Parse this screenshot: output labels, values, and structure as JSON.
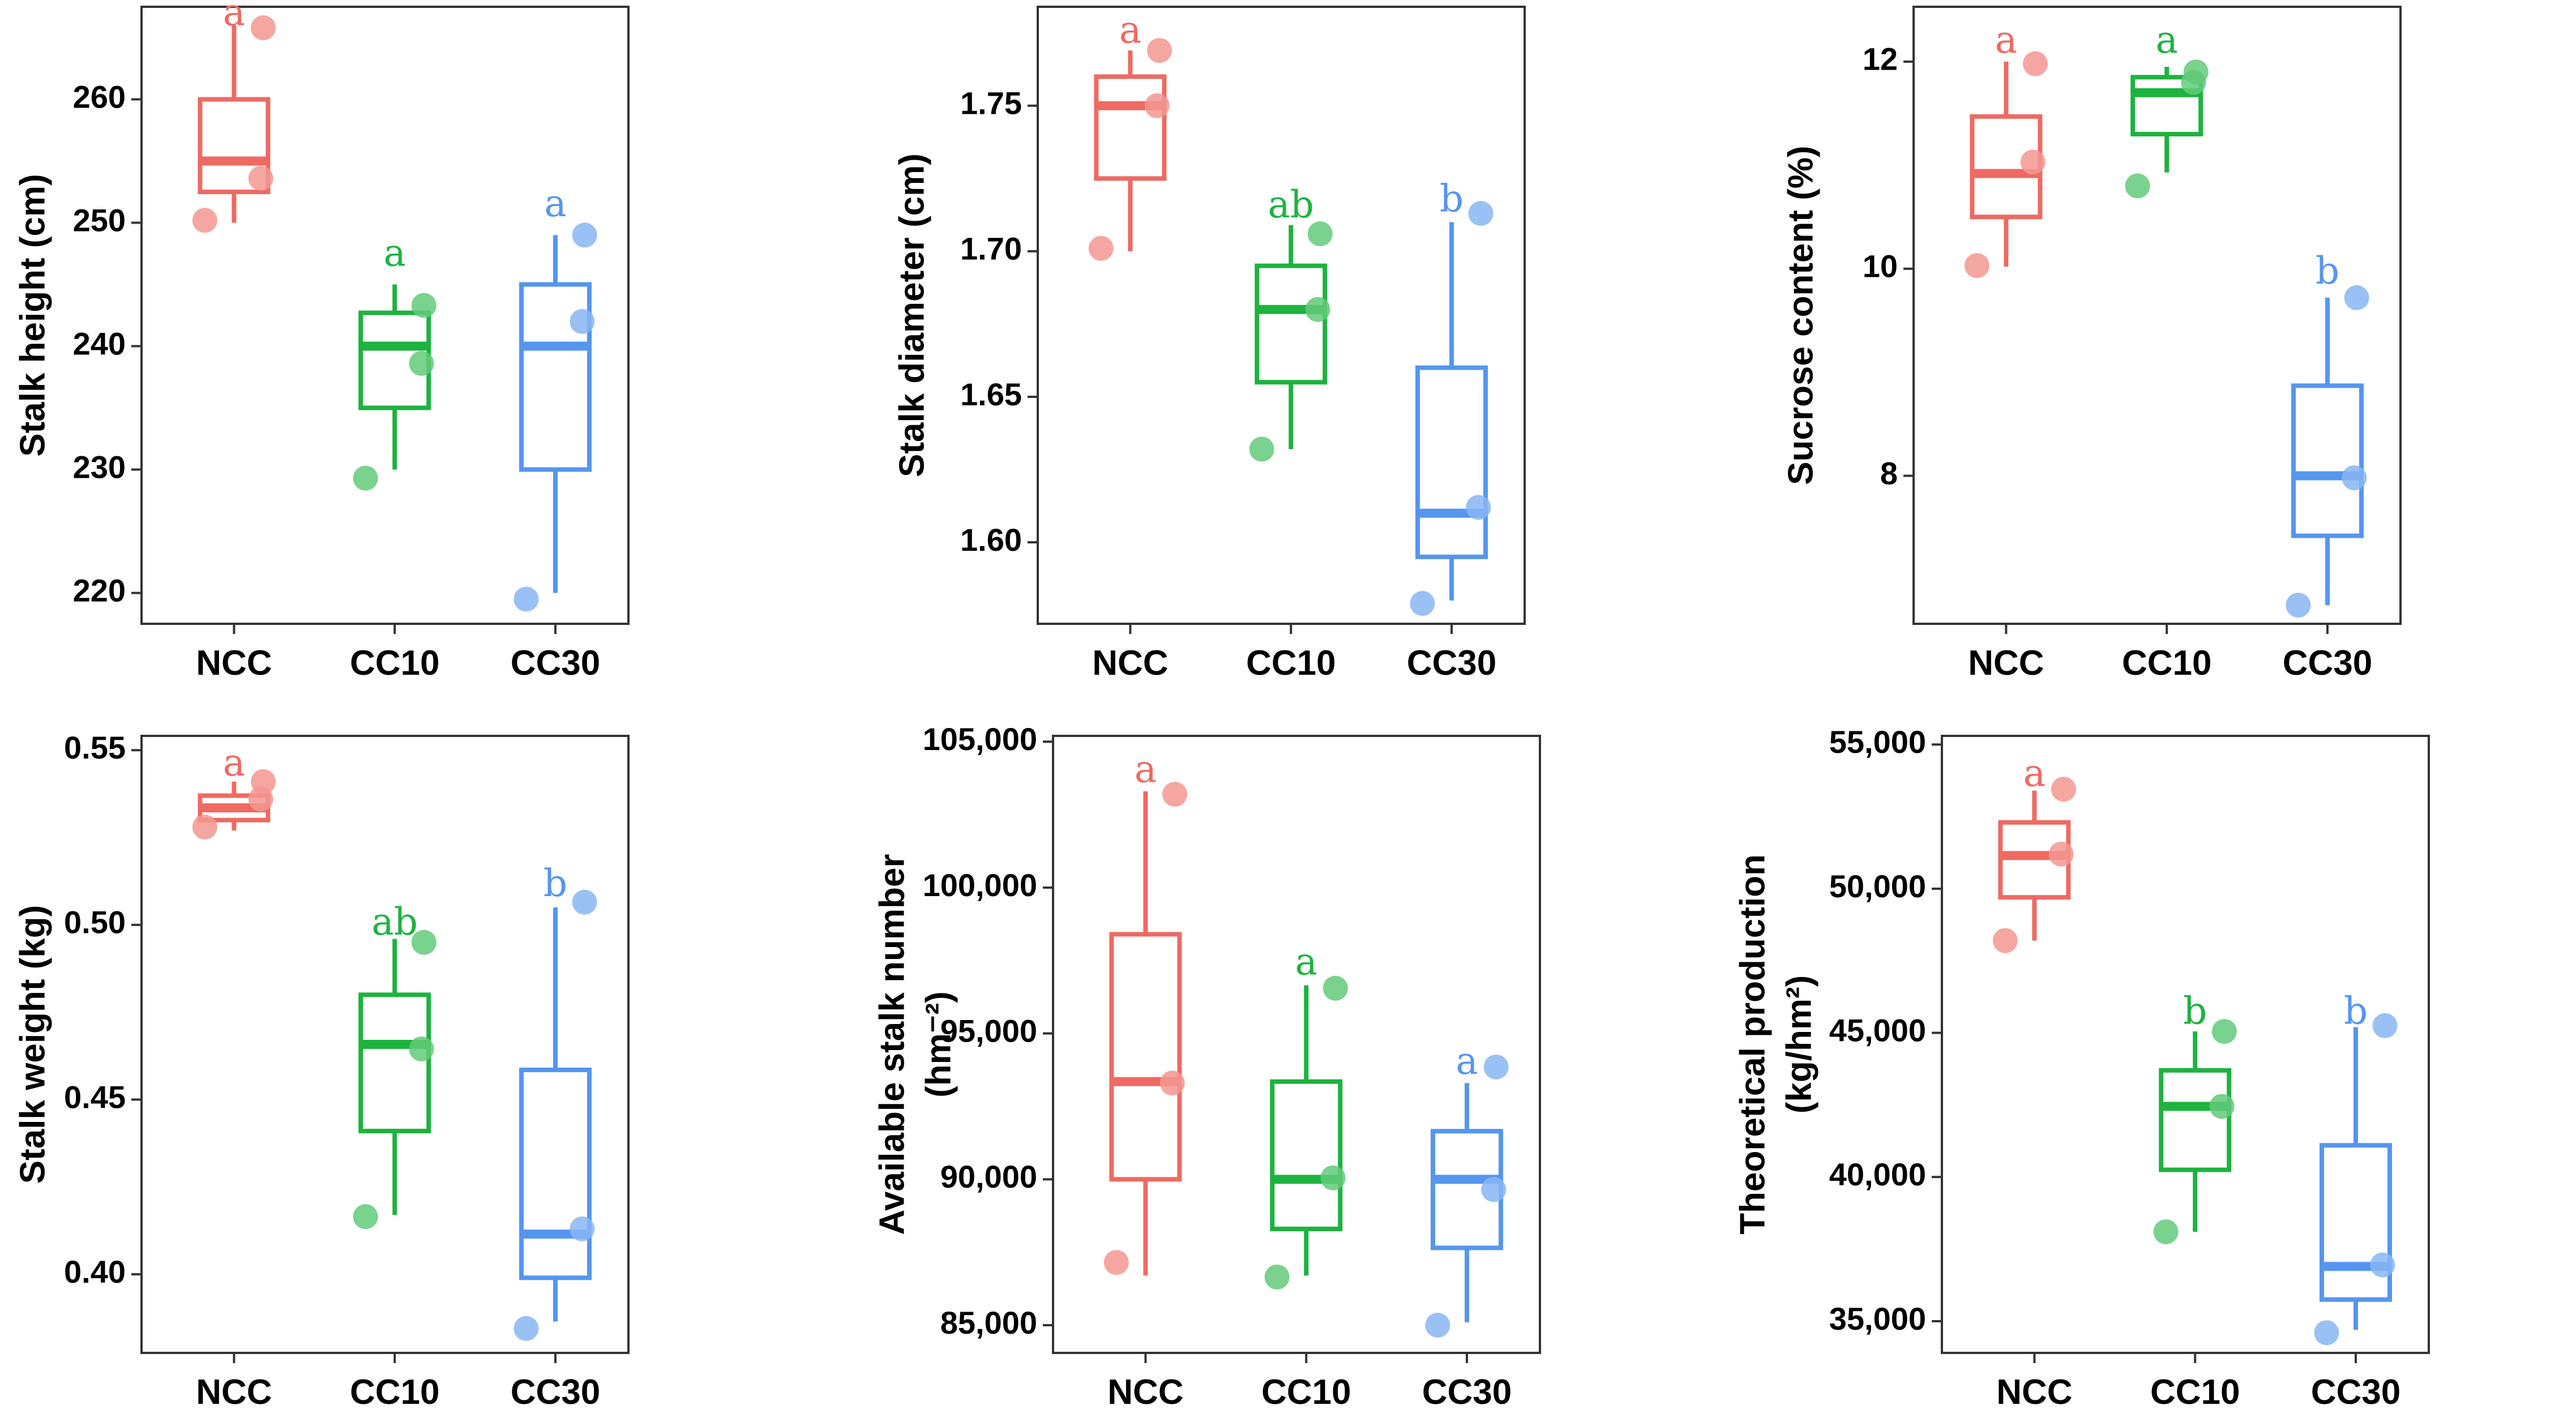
{
  "colors": {
    "NCC": "#EE6A62",
    "CC10": "#1DB33F",
    "CC30": "#5596EE"
  },
  "chart_data": [
    {
      "type": "box",
      "ylabel": [
        "Stalk height (cm)"
      ],
      "categories": [
        "NCC",
        "CC10",
        "CC30"
      ],
      "ylim": [
        217.5,
        267.5
      ],
      "yticks": [
        220,
        230,
        240,
        250,
        260
      ],
      "ytick_labels": [
        "220",
        "230",
        "240",
        "250",
        "260"
      ],
      "boxes": [
        {
          "group": "NCC",
          "q1": 252.5,
          "median": 255,
          "q3": 260,
          "whisker_low": 250,
          "whisker_high": 266,
          "points": [
            265.8,
            253.6,
            250.2
          ],
          "letter": "a",
          "letter_y": 266.8
        },
        {
          "group": "CC10",
          "q1": 235,
          "median": 240,
          "q3": 242.7,
          "whisker_low": 230,
          "whisker_high": 245,
          "points": [
            243.3,
            238.6,
            229.3
          ],
          "letter": "a",
          "letter_y": 247.3
        },
        {
          "group": "CC30",
          "q1": 230,
          "median": 240,
          "q3": 245,
          "whisker_low": 220,
          "whisker_high": 249,
          "points": [
            249.0,
            242.0,
            219.5
          ],
          "letter": "a",
          "letter_y": 251.3
        }
      ]
    },
    {
      "type": "box",
      "ylabel": [
        "Stalk diameter (cm)"
      ],
      "categories": [
        "NCC",
        "CC10",
        "CC30"
      ],
      "ylim": [
        1.572,
        1.784
      ],
      "yticks": [
        1.6,
        1.65,
        1.7,
        1.75
      ],
      "ytick_labels": [
        "1.60",
        "1.65",
        "1.70",
        "1.75"
      ],
      "boxes": [
        {
          "group": "NCC",
          "q1": 1.725,
          "median": 1.75,
          "q3": 1.76,
          "whisker_low": 1.7,
          "whisker_high": 1.769,
          "points": [
            1.769,
            1.75,
            1.701
          ],
          "letter": "a",
          "letter_y": 1.775
        },
        {
          "group": "CC10",
          "q1": 1.655,
          "median": 1.68,
          "q3": 1.695,
          "whisker_low": 1.632,
          "whisker_high": 1.709,
          "points": [
            1.706,
            1.68,
            1.632
          ],
          "letter": "ab",
          "letter_y": 1.715
        },
        {
          "group": "CC30",
          "q1": 1.595,
          "median": 1.61,
          "q3": 1.66,
          "whisker_low": 1.58,
          "whisker_high": 1.71,
          "points": [
            1.713,
            1.612,
            1.579
          ],
          "letter": "b",
          "letter_y": 1.717
        }
      ]
    },
    {
      "type": "box",
      "ylabel": [
        "Sucrose content (%)"
      ],
      "categories": [
        "NCC",
        "CC10",
        "CC30"
      ],
      "ylim": [
        6.57,
        12.53
      ],
      "yticks": [
        8,
        10,
        12
      ],
      "ytick_labels": [
        "8",
        "10",
        "12"
      ],
      "boxes": [
        {
          "group": "NCC",
          "q1": 10.5,
          "median": 10.92,
          "q3": 11.47,
          "whisker_low": 10.02,
          "whisker_high": 12.0,
          "points": [
            11.98,
            11.03,
            10.03
          ],
          "letter": "a",
          "letter_y": 12.18
        },
        {
          "group": "CC10",
          "q1": 11.3,
          "median": 11.7,
          "q3": 11.85,
          "whisker_low": 10.93,
          "whisker_high": 11.95,
          "points": [
            11.9,
            11.8,
            10.8
          ],
          "letter": "a",
          "letter_y": 12.18
        },
        {
          "group": "CC30",
          "q1": 7.42,
          "median": 8.0,
          "q3": 8.87,
          "whisker_low": 6.75,
          "whisker_high": 9.72,
          "points": [
            9.72,
            7.98,
            6.75
          ],
          "letter": "b",
          "letter_y": 9.95
        }
      ]
    },
    {
      "type": "box",
      "ylabel": [
        "Stalk weight (kg)"
      ],
      "categories": [
        "NCC",
        "CC10",
        "CC30"
      ],
      "ylim": [
        0.3775,
        0.5541
      ],
      "yticks": [
        0.4,
        0.45,
        0.5,
        0.55
      ],
      "ytick_labels": [
        "0.40",
        "0.45",
        "0.50",
        "0.55"
      ],
      "boxes": [
        {
          "group": "NCC",
          "q1": 0.53,
          "median": 0.5335,
          "q3": 0.537,
          "whisker_low": 0.527,
          "whisker_high": 0.541,
          "points": [
            0.541,
            0.536,
            0.528
          ],
          "letter": "a",
          "letter_y": 0.5455
        },
        {
          "group": "CC10",
          "q1": 0.441,
          "median": 0.4658,
          "q3": 0.48,
          "whisker_low": 0.417,
          "whisker_high": 0.496,
          "points": [
            0.495,
            0.4645,
            0.4165
          ],
          "letter": "ab",
          "letter_y": 0.5
        },
        {
          "group": "CC30",
          "q1": 0.399,
          "median": 0.4115,
          "q3": 0.4585,
          "whisker_low": 0.3865,
          "whisker_high": 0.505,
          "points": [
            0.5065,
            0.413,
            0.3845
          ],
          "letter": "b",
          "letter_y": 0.511
        }
      ]
    },
    {
      "type": "box",
      "ylabel": [
        "Available stalk number",
        "(hm⁻²)"
      ],
      "categories": [
        "NCC",
        "CC10",
        "CC30"
      ],
      "ylim": [
        84050,
        105200
      ],
      "yticks": [
        85000,
        90000,
        95000,
        100000,
        105000
      ],
      "ytick_labels": [
        "85,000",
        "90,000",
        "95,000",
        "100,000",
        "105,000"
      ],
      "boxes": [
        {
          "group": "NCC",
          "q1": 90000,
          "median": 93350,
          "q3": 98400,
          "whisker_low": 86700,
          "whisker_high": 103300,
          "points": [
            103200,
            93300,
            87150
          ],
          "letter": "a",
          "letter_y": 103950
        },
        {
          "group": "CC10",
          "q1": 88300,
          "median": 90000,
          "q3": 93350,
          "whisker_low": 86700,
          "whisker_high": 96650,
          "points": [
            96550,
            90050,
            86650
          ],
          "letter": "a",
          "letter_y": 97350
        },
        {
          "group": "CC30",
          "q1": 87650,
          "median": 90000,
          "q3": 91650,
          "whisker_low": 85100,
          "whisker_high": 93300,
          "points": [
            93850,
            89650,
            85000
          ],
          "letter": "a",
          "letter_y": 93950
        }
      ]
    },
    {
      "type": "box",
      "ylabel": [
        "Theoretical production",
        "(kg/hm²)"
      ],
      "categories": [
        "NCC",
        "CC10",
        "CC30"
      ],
      "ylim": [
        33900,
        55300
      ],
      "yticks": [
        35000,
        40000,
        45000,
        50000,
        55000
      ],
      "ytick_labels": [
        "35,000",
        "40,000",
        "45,000",
        "50,000",
        "55,000"
      ],
      "boxes": [
        {
          "group": "NCC",
          "q1": 49700,
          "median": 51150,
          "q3": 52300,
          "whisker_low": 48200,
          "whisker_high": 53400,
          "points": [
            53450,
            51200,
            48200
          ],
          "letter": "a",
          "letter_y": 53900
        },
        {
          "group": "CC10",
          "q1": 40250,
          "median": 42450,
          "q3": 43700,
          "whisker_low": 38100,
          "whisker_high": 45050,
          "points": [
            45050,
            42450,
            38100
          ],
          "letter": "b",
          "letter_y": 45650
        },
        {
          "group": "CC30",
          "q1": 35750,
          "median": 36900,
          "q3": 41100,
          "whisker_low": 34700,
          "whisker_high": 45200,
          "points": [
            45250,
            36950,
            34600
          ],
          "letter": "b",
          "letter_y": 45650
        }
      ]
    }
  ]
}
